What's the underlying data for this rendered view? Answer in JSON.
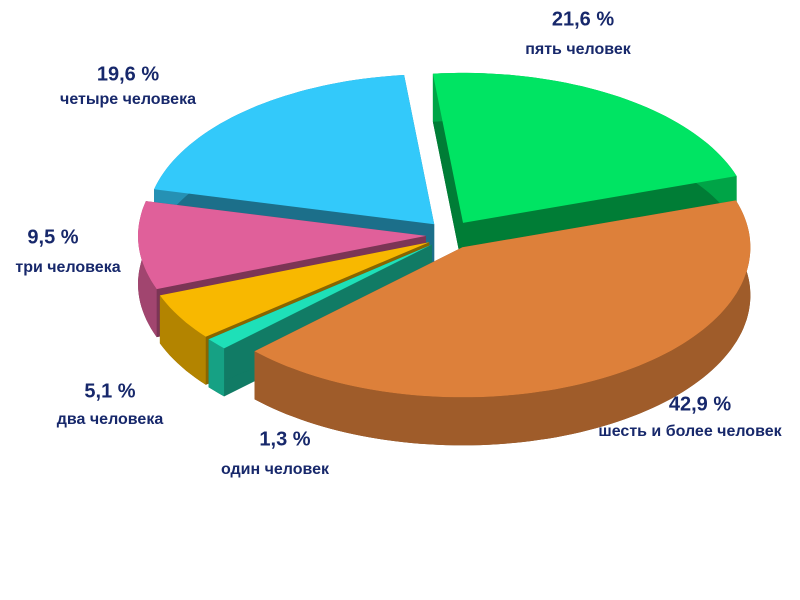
{
  "chart_data": {
    "type": "pie",
    "categories": [
      "пять человек",
      "шесть  и более человек",
      "один человек",
      "два человека",
      "три человека",
      "четыре человека"
    ],
    "values": [
      21.6,
      42.9,
      1.3,
      5.1,
      9.5,
      19.6
    ],
    "value_labels": [
      "21,6 %",
      "42,9 %",
      "1,3 %",
      "5,1 %",
      "9,5 %",
      "19,6 %"
    ],
    "colors": [
      "#00e463",
      "#dd803a",
      "#1ee0b8",
      "#f8b800",
      "#e0609a",
      "#33c9fa"
    ]
  }
}
